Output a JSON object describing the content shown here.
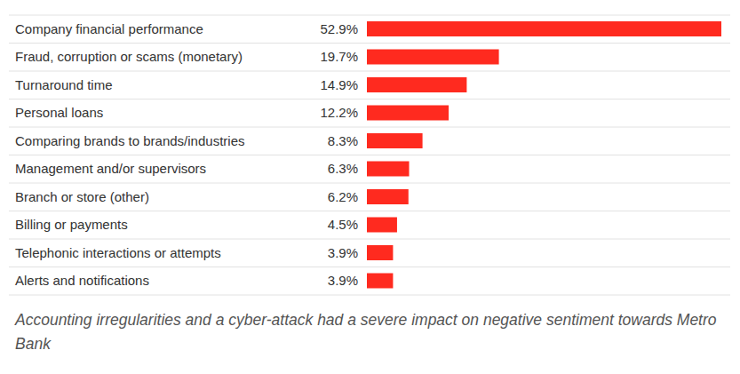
{
  "chart_data": {
    "type": "bar",
    "orientation": "horizontal",
    "categories": [
      "Company financial performance",
      "Fraud, corruption or scams (monetary)",
      "Turnaround time",
      "Personal loans",
      "Comparing brands to brands/industries",
      "Management and/or supervisors",
      "Branch or store (other)",
      "Billing or payments",
      "Telephonic interactions or attempts",
      "Alerts and notifications"
    ],
    "values": [
      52.9,
      19.7,
      14.9,
      12.2,
      8.3,
      6.3,
      6.2,
      4.5,
      3.9,
      3.9
    ],
    "value_labels": [
      "52.9%",
      "19.7%",
      "14.9%",
      "12.2%",
      "8.3%",
      "6.3%",
      "6.2%",
      "4.5%",
      "3.9%",
      "3.9%"
    ],
    "data_labels": true,
    "tick_labels": "y",
    "xlim": [
      0,
      52.9
    ],
    "color": "#ff2a1f",
    "caption": "Accounting irregularities and a cyber-attack had a severe impact on negative sentiment towards Metro Bank"
  }
}
